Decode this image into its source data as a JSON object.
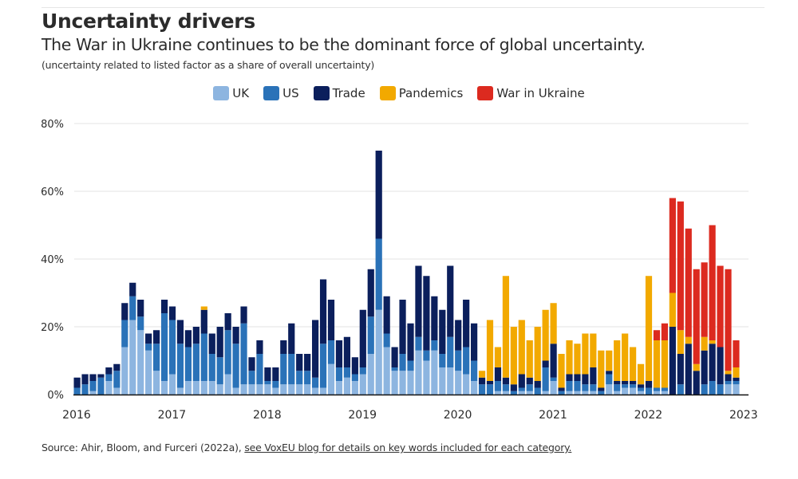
{
  "header": {
    "title": "Uncertainty drivers",
    "subtitle": "The War in Ukraine continues to be the dominant force of global uncertainty.",
    "note": "(uncertainty related to listed factor as a share of overall uncertainty)"
  },
  "footer": {
    "source_prefix": "Source: Ahir, Bloom, and Furceri (2022a), ",
    "source_link": "see VoxEU blog for details on key words included for each category."
  },
  "chart_data": {
    "type": "bar",
    "stacked": true,
    "title": "Uncertainty drivers",
    "subtitle": "The War in Ukraine continues to be the dominant force of global uncertainty.",
    "xlabel": "",
    "ylabel": "(uncertainty related to listed factor as a share of overall uncertainty)",
    "ylim": [
      0,
      80
    ],
    "yticks": [
      0,
      20,
      40,
      60,
      80
    ],
    "ytick_labels": [
      "0%",
      "20%",
      "40%",
      "60%",
      "80%"
    ],
    "xticks": [
      "2016",
      "2017",
      "2018",
      "2019",
      "2020",
      "2021",
      "2022",
      "2023"
    ],
    "x_start": "2016-01",
    "x_end": "2022-12",
    "frequency": "monthly",
    "grid": true,
    "legend_position": "top-center",
    "series": [
      {
        "name": "UK",
        "color": "#8db5e0",
        "values": [
          0,
          0,
          1,
          0,
          4,
          2,
          14,
          22,
          19,
          13,
          7,
          4,
          6,
          2,
          4,
          4,
          4,
          4,
          3,
          6,
          2,
          3,
          3,
          3,
          3,
          2,
          3,
          3,
          3,
          3,
          2,
          2,
          9,
          4,
          5,
          4,
          6,
          12,
          25,
          14,
          7,
          7,
          7,
          13,
          10,
          13,
          8,
          8,
          7,
          6,
          4,
          0,
          0,
          1,
          1,
          0,
          1,
          1,
          0,
          1,
          4,
          0,
          1,
          1,
          1,
          1,
          0,
          3,
          1,
          2,
          2,
          1,
          0,
          1,
          1,
          0,
          0,
          0,
          0,
          0,
          0,
          0,
          3,
          3
        ]
      },
      {
        "name": "US",
        "color": "#2a72b8",
        "values": [
          2,
          3,
          3,
          5,
          2,
          5,
          8,
          7,
          4,
          2,
          8,
          20,
          16,
          13,
          10,
          11,
          14,
          8,
          8,
          13,
          13,
          18,
          4,
          9,
          1,
          2,
          9,
          9,
          4,
          4,
          3,
          13,
          7,
          4,
          3,
          2,
          2,
          11,
          21,
          4,
          1,
          5,
          3,
          4,
          3,
          3,
          4,
          9,
          6,
          8,
          6,
          3,
          3,
          3,
          2,
          1,
          1,
          2,
          2,
          7,
          1,
          1,
          3,
          3,
          2,
          2,
          1,
          3,
          2,
          1,
          1,
          1,
          2,
          1,
          1,
          0,
          3,
          0,
          0,
          3,
          4,
          3,
          1,
          1
        ]
      },
      {
        "name": "Trade",
        "color": "#0b1f5c",
        "values": [
          3,
          3,
          2,
          1,
          2,
          2,
          5,
          4,
          5,
          3,
          4,
          4,
          4,
          7,
          5,
          5,
          7,
          6,
          9,
          5,
          5,
          5,
          4,
          4,
          4,
          4,
          4,
          9,
          5,
          5,
          17,
          19,
          12,
          8,
          9,
          5,
          17,
          14,
          26,
          11,
          6,
          16,
          11,
          21,
          22,
          13,
          13,
          21,
          9,
          14,
          11,
          2,
          1,
          4,
          2,
          2,
          4,
          2,
          2,
          2,
          10,
          1,
          2,
          2,
          3,
          5,
          1,
          1,
          1,
          1,
          1,
          1,
          2,
          0,
          0,
          20,
          9,
          15,
          7,
          10,
          11,
          11,
          2,
          1
        ]
      },
      {
        "name": "Pandemics",
        "color": "#f2a900",
        "values": [
          0,
          0,
          0,
          0,
          0,
          0,
          0,
          0,
          0,
          0,
          0,
          0,
          0,
          0,
          0,
          0,
          1,
          0,
          0,
          0,
          0,
          0,
          0,
          0,
          0,
          0,
          0,
          0,
          0,
          0,
          0,
          0,
          0,
          0,
          0,
          0,
          0,
          0,
          0,
          0,
          0,
          0,
          0,
          0,
          0,
          0,
          0,
          0,
          0,
          0,
          0,
          2,
          18,
          6,
          30,
          17,
          16,
          11,
          16,
          15,
          12,
          10,
          10,
          9,
          12,
          10,
          11,
          6,
          12,
          14,
          10,
          6,
          31,
          14,
          14,
          10,
          7,
          2,
          2,
          4,
          1,
          0,
          1,
          3
        ]
      },
      {
        "name": "War in Ukraine",
        "color": "#dc2a1f",
        "values": [
          0,
          0,
          0,
          0,
          0,
          0,
          0,
          0,
          0,
          0,
          0,
          0,
          0,
          0,
          0,
          0,
          0,
          0,
          0,
          0,
          0,
          0,
          0,
          0,
          0,
          0,
          0,
          0,
          0,
          0,
          0,
          0,
          0,
          0,
          0,
          0,
          0,
          0,
          0,
          0,
          0,
          0,
          0,
          0,
          0,
          0,
          0,
          0,
          0,
          0,
          0,
          0,
          0,
          0,
          0,
          0,
          0,
          0,
          0,
          0,
          0,
          0,
          0,
          0,
          0,
          0,
          0,
          0,
          0,
          0,
          0,
          0,
          0,
          3,
          5,
          28,
          38,
          32,
          28,
          22,
          34,
          24,
          30,
          8
        ]
      }
    ]
  }
}
